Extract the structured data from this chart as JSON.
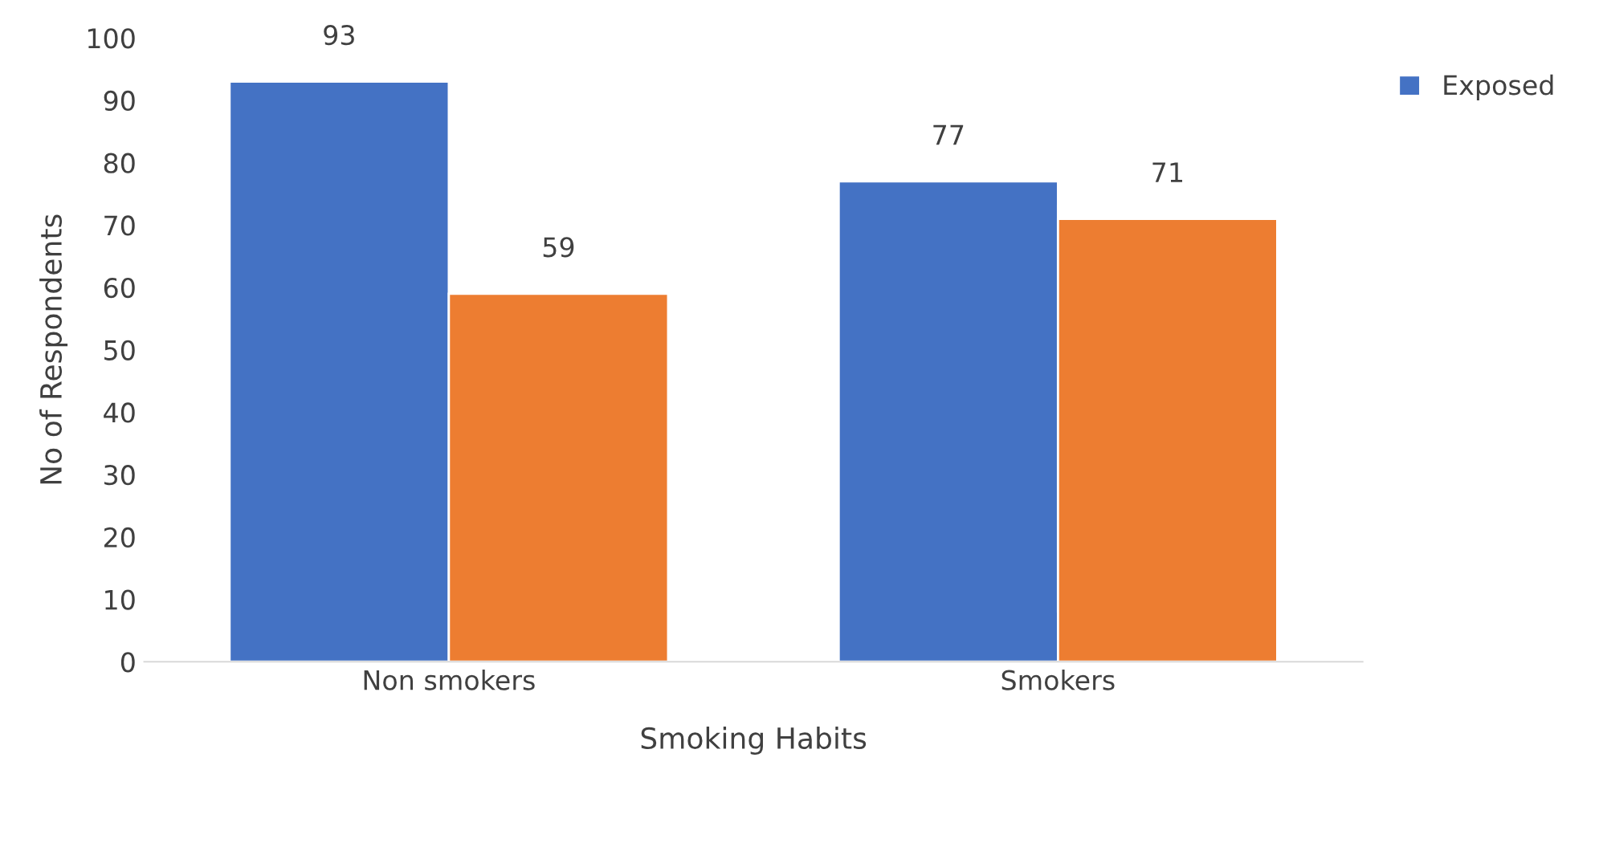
{
  "chart_data": {
    "type": "bar",
    "xlabel": "Smoking Habits",
    "ylabel": "No of Respondents",
    "categories": [
      "Non smokers",
      "Smokers"
    ],
    "series": [
      {
        "name": "Exposed",
        "color": "#4472c4",
        "values": [
          93,
          77
        ]
      },
      {
        "color": "#ed7d31",
        "values": [
          59,
          71
        ]
      }
    ],
    "ylim": [
      0,
      100
    ],
    "yticks": [
      0,
      10,
      20,
      30,
      40,
      50,
      60,
      70,
      80,
      90,
      100
    ],
    "data_labels": true,
    "legend": "top right",
    "grid": false
  }
}
